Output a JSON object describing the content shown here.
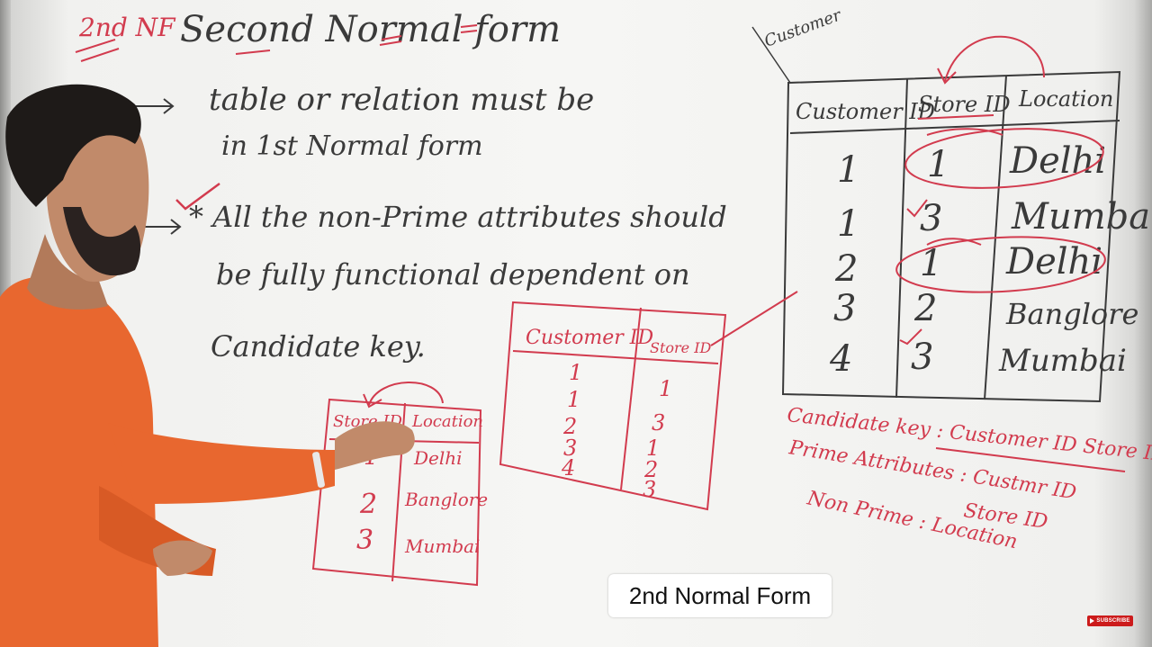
{
  "caption": "2nd Normal Form",
  "subscribe_label": "SUBSCRIBE",
  "board": {
    "title_nf": "2nd NF",
    "title": "Second Normal form",
    "rule1_line1": "table or relation must be",
    "rule1_line2": "in 1st Normal form",
    "rule2_line1": "* All the non-Prime attributes should",
    "rule2_line2": "be fully functional dependent on",
    "rule2_line3": "Candidate key.",
    "customer_label": "Customer",
    "main_table": {
      "headers": [
        "Customer ID",
        "Store ID",
        "Location"
      ],
      "rows": [
        [
          "1",
          "1",
          "Delhi"
        ],
        [
          "1",
          "3",
          "Mumbai"
        ],
        [
          "2",
          "1",
          "Delhi"
        ],
        [
          "3",
          "2",
          "Banglore"
        ],
        [
          "4",
          "3",
          "Mumbai"
        ]
      ]
    },
    "mid_table": {
      "headers": [
        "Customer ID",
        "Store ID"
      ],
      "col1": [
        "1",
        "1",
        "2",
        "3",
        "4"
      ],
      "col2": [
        "1",
        "3",
        "1",
        "2",
        "3"
      ]
    },
    "small_table": {
      "headers": [
        "Store ID",
        "Location"
      ],
      "rows": [
        [
          "1",
          "Delhi"
        ],
        [
          "2",
          "Banglore"
        ],
        [
          "3",
          "Mumbai"
        ]
      ]
    },
    "candidate_key": "Candidate key : Customer ID Store ID",
    "prime_attributes": "Prime Attributes : Custmr ID",
    "prime_attributes_2": "Store ID",
    "non_prime": "Non Prime : Location"
  },
  "colors": {
    "ink_black": "#3a3a3a",
    "ink_red": "#d23b4e",
    "shirt": "#e8672f"
  }
}
